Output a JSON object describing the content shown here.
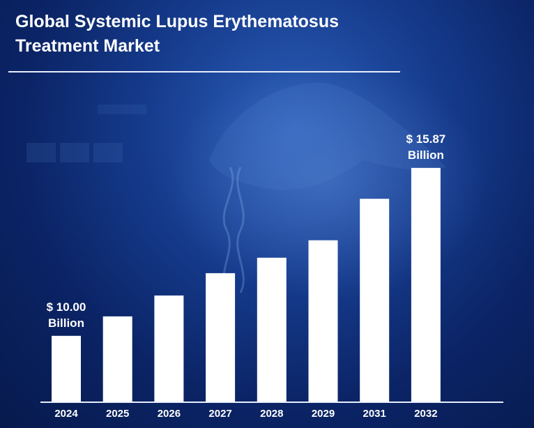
{
  "chart_data": {
    "type": "bar",
    "title": "Global Systemic Lupus Erythematosus Treatment Market",
    "title_lines": [
      "Global Systemic Lupus Erythematosus",
      "Treatment Market"
    ],
    "categories": [
      "2024",
      "2025",
      "2026",
      "2027",
      "2028",
      "2029",
      "2031",
      "2032"
    ],
    "values": [
      10.0,
      10.68,
      11.41,
      12.19,
      12.73,
      13.34,
      14.79,
      15.87
    ],
    "xlabel": "",
    "ylabel": "",
    "unit": "USD Billion",
    "ylim": [
      7.68,
      16.5
    ],
    "annotations": [
      {
        "category": "2024",
        "lines": [
          "$ 10.00",
          "Billion"
        ]
      },
      {
        "category": "2032",
        "lines": [
          "$ 15.87",
          "Billion"
        ]
      }
    ],
    "colors": {
      "bar": "#ffffff",
      "axis": "#e8eefc",
      "background": "#0b2466"
    }
  }
}
